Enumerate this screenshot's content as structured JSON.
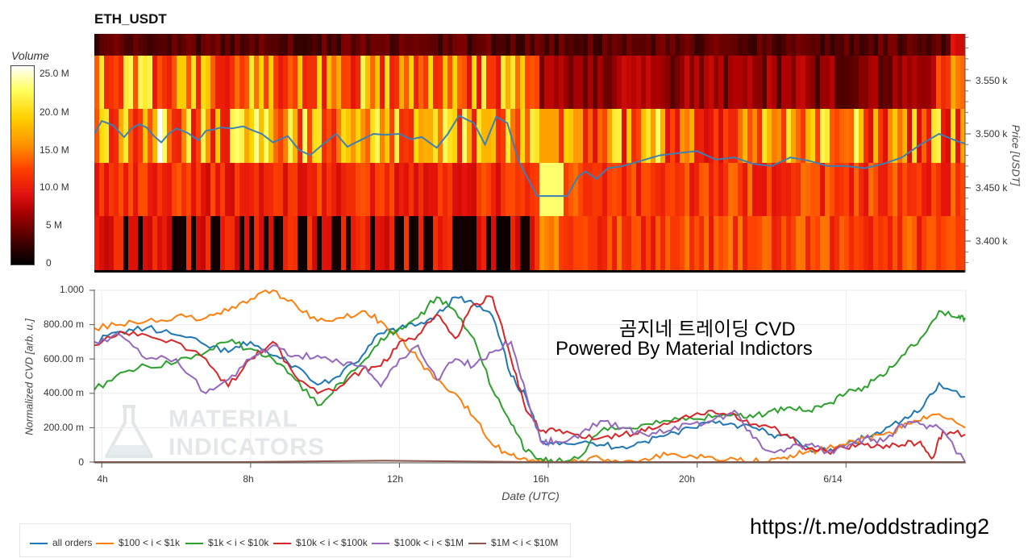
{
  "title": "ETH_USDT",
  "colorbar": {
    "title": "Volume",
    "ticks": [
      "25.0 M",
      "20.0 M",
      "15.0 M",
      "10.0 M",
      "5 M",
      "0"
    ]
  },
  "price_axis": {
    "label": "Price [USDT]",
    "ticks": [
      "3.550 k",
      "3.500 k",
      "3.450 k",
      "3.400 k"
    ]
  },
  "cvd_axis": {
    "label": "Normalized CVD [arb. u.]",
    "ticks": [
      "1.000",
      "800.00 m",
      "600.00 m",
      "400.00 m",
      "200.00 m",
      "0"
    ]
  },
  "x_axis": {
    "label": "Date (UTC)",
    "ticks": [
      "4h",
      "8h",
      "12h",
      "16h",
      "20h",
      "6/14"
    ]
  },
  "watermark": {
    "line1": "MATERIAL",
    "line2": "INDICATORS"
  },
  "overlay": {
    "line1": "곰지네 트레이딩 CVD",
    "line2": "Powered By Material Indictors"
  },
  "link": "https://t.me/oddstrading2",
  "legend": [
    {
      "label": "all orders",
      "color": "#1f77b4"
    },
    {
      "label": "$100 < i < $1k",
      "color": "#ff7f0e"
    },
    {
      "label": "$1k < i < $10k",
      "color": "#2ca02c"
    },
    {
      "label": "$10k < i < $100k",
      "color": "#d62728"
    },
    {
      "label": "$100k < i < $1M",
      "color": "#9467bd"
    },
    {
      "label": "$1M < i < $10M",
      "color": "#8c564b"
    }
  ],
  "chart_data": [
    {
      "type": "heatmap",
      "title": "ETH_USDT",
      "colorbar_label": "Volume",
      "color_range": [
        0,
        27000000
      ],
      "x_hours": [
        3.8,
        27.2
      ],
      "y_price_bands": [
        3575,
        3525,
        3475,
        3425,
        3375
      ],
      "ylim": [
        3373,
        3593
      ],
      "price_series": {
        "name": "",
        "color": "#3d7fb5",
        "x": [
          3.8,
          4.0,
          4.3,
          4.6,
          4.8,
          5.0,
          5.2,
          5.4,
          5.6,
          5.8,
          6.0,
          6.3,
          6.6,
          6.8,
          7.0,
          7.2,
          7.5,
          7.8,
          8.0,
          8.3,
          8.6,
          9.0,
          9.3,
          9.6,
          10.0,
          10.3,
          10.6,
          11.0,
          11.3,
          11.6,
          12.0,
          12.3,
          12.6,
          13.0,
          13.3,
          13.6,
          14.0,
          14.3,
          14.6,
          14.9,
          15.2,
          15.5,
          15.7,
          16.0,
          16.5,
          16.8,
          17.0,
          17.3,
          17.6,
          18.0,
          18.5,
          19.0,
          19.5,
          20.0,
          20.5,
          21.0,
          21.5,
          22.0,
          22.5,
          23.0,
          23.5,
          24.0,
          24.5,
          25.0,
          25.5,
          26.0,
          26.5,
          27.0,
          27.2
        ],
        "y": [
          3500,
          3512,
          3508,
          3497,
          3505,
          3509,
          3506,
          3498,
          3492,
          3500,
          3505,
          3501,
          3494,
          3503,
          3504,
          3506,
          3505,
          3507,
          3504,
          3500,
          3492,
          3498,
          3485,
          3480,
          3492,
          3500,
          3488,
          3495,
          3500,
          3499,
          3500,
          3495,
          3497,
          3487,
          3500,
          3517,
          3510,
          3490,
          3516,
          3510,
          3475,
          3455,
          3442,
          3442,
          3442,
          3460,
          3465,
          3458,
          3468,
          3470,
          3475,
          3480,
          3482,
          3484,
          3476,
          3478,
          3472,
          3470,
          3478,
          3475,
          3470,
          3470,
          3468,
          3472,
          3478,
          3490,
          3500,
          3493,
          3491
        ]
      }
    },
    {
      "type": "line",
      "xlabel": "Date (UTC)",
      "ylabel": "Normalized CVD [arb. u.]",
      "ylim": [
        0,
        1
      ],
      "xlim": [
        3.8,
        27.2
      ],
      "series": [
        {
          "name": "all orders",
          "x": [
            3.8,
            4.5,
            5.2,
            6,
            6.8,
            7.4,
            8,
            8.6,
            9.2,
            9.8,
            10.4,
            11,
            11.5,
            12,
            12.5,
            13,
            13.5,
            14,
            14.5,
            15,
            15.4,
            15.8,
            16.2,
            16.8,
            17.4,
            18,
            18.6,
            19.2,
            19.8,
            20.4,
            21,
            21.5,
            22,
            22.5,
            23,
            23.5,
            24,
            24.5,
            25,
            25.5,
            26,
            26.5,
            27.2
          ],
          "y": [
            0.7,
            0.76,
            0.78,
            0.74,
            0.68,
            0.64,
            0.7,
            0.62,
            0.56,
            0.45,
            0.5,
            0.62,
            0.75,
            0.78,
            0.8,
            0.86,
            0.96,
            0.92,
            0.85,
            0.5,
            0.38,
            0.12,
            0.12,
            0.11,
            0.1,
            0.09,
            0.12,
            0.16,
            0.2,
            0.24,
            0.22,
            0.2,
            0.16,
            0.14,
            0.08,
            0.06,
            0.1,
            0.14,
            0.18,
            0.24,
            0.3,
            0.46,
            0.38
          ]
        },
        {
          "name": "$100 < i < $1k",
          "x": [
            3.8,
            4.5,
            5.2,
            6,
            6.8,
            7.4,
            8,
            8.6,
            9.2,
            9.8,
            10.4,
            11,
            11.5,
            12,
            12.5,
            13,
            13.5,
            14,
            14.5,
            15,
            15.4,
            15.8,
            16.2,
            16.8,
            17.4,
            18,
            18.6,
            19.2,
            19.8,
            20.4,
            21,
            21.5,
            22,
            22.5,
            23,
            23.5,
            24,
            24.5,
            25,
            25.5,
            26,
            26.5,
            27.2
          ],
          "y": [
            0.78,
            0.8,
            0.82,
            0.85,
            0.84,
            0.88,
            0.95,
            1.0,
            0.92,
            0.82,
            0.84,
            0.88,
            0.82,
            0.72,
            0.6,
            0.48,
            0.4,
            0.26,
            0.1,
            0.04,
            0.02,
            0.0,
            0.0,
            0.0,
            0.02,
            0.0,
            0.02,
            0.04,
            0.04,
            0.03,
            0.02,
            0.0,
            0.02,
            0.04,
            0.06,
            0.08,
            0.1,
            0.14,
            0.16,
            0.2,
            0.24,
            0.28,
            0.2
          ]
        },
        {
          "name": "$1k < i < $10k",
          "x": [
            3.8,
            4.5,
            5.2,
            6,
            6.8,
            7.4,
            8,
            8.6,
            9.2,
            9.8,
            10.4,
            11,
            11.5,
            12,
            12.5,
            13,
            13.5,
            14,
            14.5,
            15,
            15.4,
            15.8,
            16.2,
            16.8,
            17.4,
            18,
            18.6,
            19.2,
            19.8,
            20.4,
            21,
            21.5,
            22,
            22.5,
            23,
            23.5,
            24,
            24.5,
            25,
            25.5,
            26,
            26.5,
            27,
            27.2
          ],
          "y": [
            0.42,
            0.52,
            0.56,
            0.58,
            0.64,
            0.7,
            0.66,
            0.6,
            0.48,
            0.33,
            0.46,
            0.58,
            0.72,
            0.78,
            0.84,
            0.96,
            0.88,
            0.72,
            0.42,
            0.22,
            0.06,
            0.02,
            0.0,
            0.02,
            0.18,
            0.2,
            0.22,
            0.24,
            0.26,
            0.26,
            0.28,
            0.26,
            0.3,
            0.32,
            0.3,
            0.34,
            0.4,
            0.44,
            0.5,
            0.62,
            0.72,
            0.88,
            0.84,
            0.84
          ]
        },
        {
          "name": "$10k < i < $100k",
          "x": [
            3.8,
            4.5,
            5.2,
            6,
            6.8,
            7.4,
            8,
            8.6,
            9.2,
            9.8,
            10.4,
            11,
            11.5,
            12,
            12.5,
            13,
            13.5,
            14,
            14.5,
            15,
            15.4,
            15.8,
            16.2,
            16.8,
            17.4,
            18,
            18.6,
            19.2,
            19.8,
            20.4,
            21,
            21.5,
            22,
            22.5,
            23,
            23.5,
            24,
            24.5,
            25,
            25.5,
            26,
            26.3,
            26.6,
            27.2
          ],
          "y": [
            0.68,
            0.76,
            0.74,
            0.7,
            0.6,
            0.44,
            0.6,
            0.7,
            0.5,
            0.4,
            0.44,
            0.54,
            0.56,
            0.7,
            0.74,
            0.86,
            0.72,
            0.92,
            0.96,
            0.6,
            0.3,
            0.18,
            0.18,
            0.16,
            0.14,
            0.16,
            0.18,
            0.22,
            0.26,
            0.3,
            0.28,
            0.22,
            0.2,
            0.14,
            0.08,
            0.06,
            0.08,
            0.1,
            0.08,
            0.1,
            0.12,
            0.02,
            0.18,
            0.16
          ]
        },
        {
          "name": "$100k < i < $1M",
          "x": [
            3.8,
            4.5,
            5.2,
            6,
            6.8,
            7.4,
            8,
            8.6,
            9.2,
            9.8,
            10.4,
            11,
            11.5,
            12,
            12.5,
            13,
            13.5,
            14,
            14.5,
            15,
            15.4,
            15.8,
            16.2,
            16.8,
            17.4,
            18,
            18.6,
            19.2,
            19.8,
            20.4,
            21,
            21.5,
            22,
            22.5,
            23,
            23.5,
            24,
            24.5,
            25,
            25.5,
            26,
            26.5,
            27.2
          ],
          "y": [
            0.7,
            0.74,
            0.6,
            0.6,
            0.4,
            0.48,
            0.6,
            0.68,
            0.62,
            0.62,
            0.58,
            0.56,
            0.44,
            0.6,
            0.68,
            0.48,
            0.6,
            0.56,
            0.64,
            0.7,
            0.4,
            0.12,
            0.12,
            0.14,
            0.24,
            0.2,
            0.16,
            0.18,
            0.22,
            0.24,
            0.3,
            0.14,
            0.06,
            0.08,
            0.1,
            0.06,
            0.08,
            0.14,
            0.12,
            0.22,
            0.22,
            0.2,
            0.0
          ]
        },
        {
          "name": "$1M < i < $10M",
          "x": [
            3.8,
            27.2
          ],
          "y": [
            0.0,
            0.0
          ]
        }
      ]
    }
  ]
}
